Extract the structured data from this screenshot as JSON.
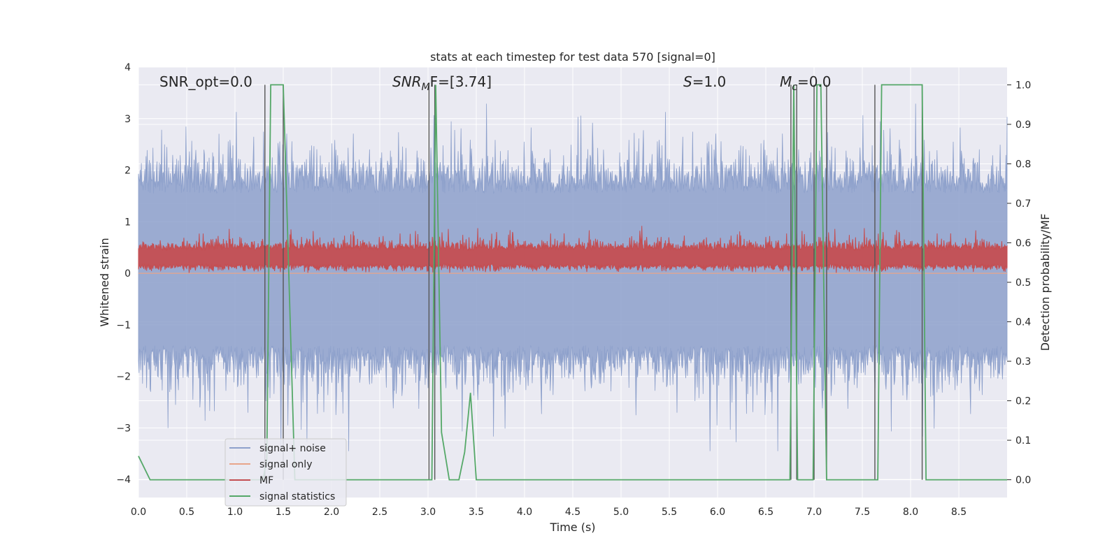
{
  "chart_data": {
    "type": "line",
    "title": "stats at each timestep for test data 570 [signal=0]",
    "xlabel": "Time (s)",
    "ylabel": "Whitened strain",
    "ylabel_right": "Detection probability/MF",
    "xlim": [
      0.0,
      9.0
    ],
    "ylim": [
      -4.35,
      4.0
    ],
    "ylim_right": [
      -0.045,
      1.045
    ],
    "x_ticks": [
      "0.0",
      "0.5",
      "1.0",
      "1.5",
      "2.0",
      "2.5",
      "3.0",
      "3.5",
      "4.0",
      "4.5",
      "5.0",
      "5.5",
      "6.0",
      "6.5",
      "7.0",
      "7.5",
      "8.0",
      "8.5"
    ],
    "y_ticks": [
      "4",
      "3",
      "2",
      "1",
      "0",
      "−1",
      "−2",
      "−3",
      "−4"
    ],
    "y_ticks_right": [
      "1.0",
      "0.9",
      "0.8",
      "0.7",
      "0.6",
      "0.5",
      "0.4",
      "0.3",
      "0.2",
      "0.1",
      "0.0"
    ],
    "annotations": {
      "snr_opt": "SNR_opt=0.0",
      "snr_mf_main": "SNR",
      "snr_mf_sub": "M",
      "snr_mf_rest": "F=[3.74]",
      "s_italic": "S",
      "s_rest": "=1.0",
      "mc_main": "M",
      "mc_sub": "c",
      "mc_rest": "=0.0"
    },
    "legend": {
      "placement": "lower-left",
      "entries": [
        {
          "label": "signal+ noise",
          "color": "#8da0cb"
        },
        {
          "label": "signal only",
          "color": "#e8a58a"
        },
        {
          "label": "MF",
          "color": "#c44e52"
        },
        {
          "label": "signal statistics",
          "color": "#55a868"
        }
      ]
    },
    "series": [
      {
        "name": "signal statistics",
        "axis": "right",
        "x": [
          0.0,
          0.12,
          1.29,
          1.33,
          1.37,
          1.5,
          1.62,
          3.0,
          3.04,
          3.08,
          3.14,
          3.22,
          3.32,
          3.38,
          3.44,
          3.5,
          6.75,
          6.79,
          6.83,
          6.87,
          6.99,
          7.03,
          7.07,
          7.13,
          7.19,
          7.62,
          7.66,
          7.7,
          8.12,
          8.16,
          8.2,
          9.0
        ],
        "values": [
          0.06,
          0.0,
          0.0,
          0.05,
          1.0,
          1.0,
          0.0,
          0.0,
          0.0,
          1.0,
          0.12,
          0.0,
          0.0,
          0.07,
          0.22,
          0.0,
          0.0,
          1.0,
          0.0,
          0.0,
          0.0,
          1.0,
          1.0,
          0.0,
          0.0,
          0.0,
          0.0,
          1.0,
          1.0,
          0.0,
          0.0,
          0.0
        ]
      },
      {
        "name": "vertical markers",
        "axis": "right",
        "x": [
          1.31,
          1.5,
          3.01,
          3.07,
          6.76,
          6.82,
          7.0,
          7.13,
          7.63,
          8.12
        ]
      }
    ],
    "noise_band": {
      "mean": 0.0,
      "core_min": -1.9,
      "core_max": 2.1,
      "peak_min": -3.45,
      "peak_max": 3.3
    },
    "mf_band": {
      "min": 0.0,
      "max": 0.95,
      "typical_max": 0.7
    },
    "colors": {
      "plot_bg": "#eaeaf2",
      "grid": "#ffffff",
      "noise": "#8da0cb",
      "signal_only": "#e8a58a",
      "mf": "#c44e52",
      "stats": "#55a868",
      "markers": "#555555"
    }
  }
}
